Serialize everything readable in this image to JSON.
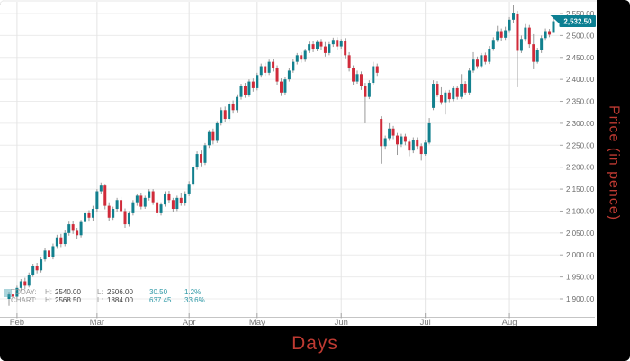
{
  "colors": {
    "up": "#12808e",
    "down": "#d02b3a",
    "wick": "#999999",
    "grid_h": "#ececec",
    "grid_v": "#e4e4e4",
    "axis": "#c5c5c5",
    "tick": "#a5a5a5",
    "tick_text": "#6b6b6b",
    "month_text": "#7a7a7a",
    "axis_title": "#bf3a32",
    "tag_bg": "#0b7f92",
    "tag_text": "#ffffff",
    "legend_change": "#2d98a6"
  },
  "axis_labels": {
    "x": "Days",
    "y": "Price (in pence)"
  },
  "price_tag": {
    "text": "2,532.50"
  },
  "legend": {
    "rows": [
      {
        "name": "TODAY:",
        "h_label": "H:",
        "h": "2540.00",
        "l_label": "L:",
        "l": "2506.00",
        "change": "30.50",
        "pct": "1.2%"
      },
      {
        "name": "CHART:",
        "h_label": "H:",
        "h": "2568.50",
        "l_label": "L:",
        "l": "1884.00",
        "change": "637.45",
        "pct": "33.6%"
      }
    ]
  },
  "chart_data": {
    "type": "candlestick",
    "title": "",
    "xlabel": "Days",
    "ylabel": "Price (in pence)",
    "grid": true,
    "y_ticks": [
      1900,
      1950,
      2000,
      2050,
      2100,
      2150,
      2200,
      2250,
      2300,
      2350,
      2400,
      2450,
      2500,
      2550
    ],
    "ylim": [
      1859,
      2581
    ],
    "last_price": 2532.5,
    "today": {
      "high": 2540.0,
      "low": 2506.0,
      "change": 30.5,
      "change_pct": "1.2%"
    },
    "period": {
      "high": 2568.5,
      "low": 1884.0,
      "change": 637.45,
      "change_pct": "33.6%"
    },
    "months": [
      {
        "label": "Feb",
        "day": 2
      },
      {
        "label": "Mar",
        "day": 22
      },
      {
        "label": "Apr",
        "day": 45
      },
      {
        "label": "May",
        "day": 62
      },
      {
        "label": "Jun",
        "day": 83
      },
      {
        "label": "Jul",
        "day": 104
      },
      {
        "label": "Aug",
        "day": 125
      }
    ],
    "ohlc": [
      [
        1900,
        1916,
        1884,
        1910
      ],
      [
        1910,
        1918,
        1898,
        1905
      ],
      [
        1905,
        1930,
        1900,
        1925
      ],
      [
        1925,
        1945,
        1918,
        1940
      ],
      [
        1940,
        1948,
        1922,
        1930
      ],
      [
        1930,
        1960,
        1926,
        1955
      ],
      [
        1955,
        1980,
        1950,
        1975
      ],
      [
        1975,
        1982,
        1958,
        1965
      ],
      [
        1965,
        1995,
        1960,
        1990
      ],
      [
        1990,
        2016,
        1985,
        2010
      ],
      [
        2010,
        2018,
        1988,
        1995
      ],
      [
        1995,
        2026,
        1990,
        2020
      ],
      [
        2020,
        2046,
        2014,
        2040
      ],
      [
        2040,
        2048,
        2018,
        2025
      ],
      [
        2025,
        2056,
        2020,
        2050
      ],
      [
        2050,
        2076,
        2044,
        2070
      ],
      [
        2070,
        2078,
        2048,
        2055
      ],
      [
        2055,
        2062,
        2036,
        2045
      ],
      [
        2045,
        2080,
        2040,
        2075
      ],
      [
        2075,
        2100,
        2068,
        2095
      ],
      [
        2095,
        2102,
        2076,
        2085
      ],
      [
        2085,
        2112,
        2078,
        2105
      ],
      [
        2105,
        2150,
        2098,
        2145
      ],
      [
        2145,
        2165,
        2138,
        2158
      ],
      [
        2158,
        2162,
        2104,
        2112
      ],
      [
        2112,
        2120,
        2078,
        2085
      ],
      [
        2085,
        2110,
        2080,
        2105
      ],
      [
        2105,
        2130,
        2098,
        2125
      ],
      [
        2125,
        2132,
        2094,
        2100
      ],
      [
        2100,
        2106,
        2062,
        2070
      ],
      [
        2070,
        2100,
        2065,
        2095
      ],
      [
        2095,
        2125,
        2090,
        2120
      ],
      [
        2120,
        2140,
        2112,
        2135
      ],
      [
        2135,
        2142,
        2104,
        2110
      ],
      [
        2110,
        2135,
        2105,
        2130
      ],
      [
        2130,
        2150,
        2124,
        2145
      ],
      [
        2145,
        2150,
        2114,
        2120
      ],
      [
        2120,
        2126,
        2088,
        2095
      ],
      [
        2095,
        2120,
        2090,
        2115
      ],
      [
        2115,
        2145,
        2110,
        2140
      ],
      [
        2140,
        2146,
        2118,
        2125
      ],
      [
        2125,
        2130,
        2098,
        2105
      ],
      [
        2105,
        2135,
        2100,
        2130
      ],
      [
        2130,
        2142,
        2112,
        2118
      ],
      [
        2118,
        2145,
        2112,
        2140
      ],
      [
        2140,
        2168,
        2134,
        2162
      ],
      [
        2162,
        2205,
        2156,
        2200
      ],
      [
        2200,
        2236,
        2194,
        2230
      ],
      [
        2230,
        2238,
        2202,
        2210
      ],
      [
        2210,
        2255,
        2205,
        2250
      ],
      [
        2250,
        2285,
        2244,
        2280
      ],
      [
        2280,
        2288,
        2252,
        2260
      ],
      [
        2260,
        2305,
        2255,
        2300
      ],
      [
        2300,
        2336,
        2295,
        2330
      ],
      [
        2330,
        2338,
        2302,
        2310
      ],
      [
        2310,
        2350,
        2305,
        2345
      ],
      [
        2345,
        2352,
        2322,
        2330
      ],
      [
        2330,
        2366,
        2325,
        2360
      ],
      [
        2360,
        2390,
        2354,
        2385
      ],
      [
        2385,
        2392,
        2358,
        2365
      ],
      [
        2365,
        2400,
        2360,
        2395
      ],
      [
        2395,
        2402,
        2372,
        2380
      ],
      [
        2380,
        2415,
        2375,
        2410
      ],
      [
        2410,
        2436,
        2404,
        2430
      ],
      [
        2430,
        2438,
        2408,
        2415
      ],
      [
        2415,
        2445,
        2410,
        2440
      ],
      [
        2440,
        2446,
        2418,
        2425
      ],
      [
        2425,
        2432,
        2388,
        2395
      ],
      [
        2395,
        2402,
        2362,
        2370
      ],
      [
        2370,
        2405,
        2365,
        2400
      ],
      [
        2400,
        2426,
        2395,
        2420
      ],
      [
        2420,
        2446,
        2415,
        2440
      ],
      [
        2440,
        2460,
        2434,
        2455
      ],
      [
        2455,
        2462,
        2438,
        2445
      ],
      [
        2445,
        2470,
        2440,
        2465
      ],
      [
        2465,
        2486,
        2460,
        2480
      ],
      [
        2480,
        2488,
        2462,
        2470
      ],
      [
        2470,
        2490,
        2464,
        2485
      ],
      [
        2485,
        2492,
        2468,
        2475
      ],
      [
        2475,
        2485,
        2452,
        2460
      ],
      [
        2460,
        2485,
        2455,
        2480
      ],
      [
        2480,
        2495,
        2474,
        2490
      ],
      [
        2490,
        2496,
        2466,
        2475
      ],
      [
        2475,
        2492,
        2470,
        2488
      ],
      [
        2488,
        2494,
        2448,
        2455
      ],
      [
        2455,
        2462,
        2418,
        2425
      ],
      [
        2425,
        2432,
        2388,
        2395
      ],
      [
        2395,
        2420,
        2390,
        2412
      ],
      [
        2412,
        2418,
        2376,
        2385
      ],
      [
        2385,
        2392,
        2300,
        2360
      ],
      [
        2360,
        2398,
        2355,
        2392
      ],
      [
        2392,
        2440,
        2388,
        2430
      ],
      [
        2430,
        2436,
        2408,
        2415
      ],
      [
        2310,
        2316,
        2208,
        2248
      ],
      [
        2248,
        2272,
        2240,
        2266
      ],
      [
        2266,
        2300,
        2260,
        2288
      ],
      [
        2288,
        2294,
        2264,
        2272
      ],
      [
        2272,
        2278,
        2228,
        2252
      ],
      [
        2252,
        2276,
        2246,
        2270
      ],
      [
        2270,
        2276,
        2250,
        2258
      ],
      [
        2258,
        2264,
        2225,
        2238
      ],
      [
        2238,
        2268,
        2232,
        2262
      ],
      [
        2262,
        2268,
        2240,
        2248
      ],
      [
        2248,
        2254,
        2215,
        2230
      ],
      [
        2230,
        2262,
        2226,
        2256
      ],
      [
        2256,
        2312,
        2252,
        2300
      ],
      [
        2335,
        2398,
        2330,
        2390
      ],
      [
        2390,
        2396,
        2360,
        2365
      ],
      [
        2365,
        2382,
        2342,
        2348
      ],
      [
        2348,
        2375,
        2320,
        2370
      ],
      [
        2370,
        2376,
        2348,
        2355
      ],
      [
        2355,
        2385,
        2350,
        2380
      ],
      [
        2380,
        2386,
        2354,
        2360
      ],
      [
        2360,
        2412,
        2355,
        2390
      ],
      [
        2390,
        2396,
        2364,
        2370
      ],
      [
        2370,
        2426,
        2365,
        2420
      ],
      [
        2420,
        2462,
        2415,
        2445
      ],
      [
        2445,
        2452,
        2424,
        2430
      ],
      [
        2430,
        2460,
        2425,
        2455
      ],
      [
        2455,
        2461,
        2434,
        2440
      ],
      [
        2440,
        2476,
        2435,
        2470
      ],
      [
        2470,
        2496,
        2465,
        2490
      ],
      [
        2490,
        2522,
        2485,
        2510
      ],
      [
        2510,
        2516,
        2488,
        2495
      ],
      [
        2495,
        2520,
        2490,
        2512
      ],
      [
        2512,
        2542,
        2506,
        2536
      ],
      [
        2536,
        2568.5,
        2528,
        2552
      ],
      [
        2548,
        2556,
        2382,
        2465
      ],
      [
        2465,
        2500,
        2460,
        2492
      ],
      [
        2492,
        2526,
        2486,
        2518
      ],
      [
        2518,
        2524,
        2472,
        2480
      ],
      [
        2480,
        2503,
        2423,
        2440
      ],
      [
        2440,
        2472,
        2436,
        2466
      ],
      [
        2466,
        2500,
        2460,
        2494
      ],
      [
        2494,
        2516,
        2490,
        2510
      ],
      [
        2510,
        2515,
        2496,
        2502
      ],
      [
        2506,
        2540,
        2506,
        2532.5
      ]
    ]
  }
}
